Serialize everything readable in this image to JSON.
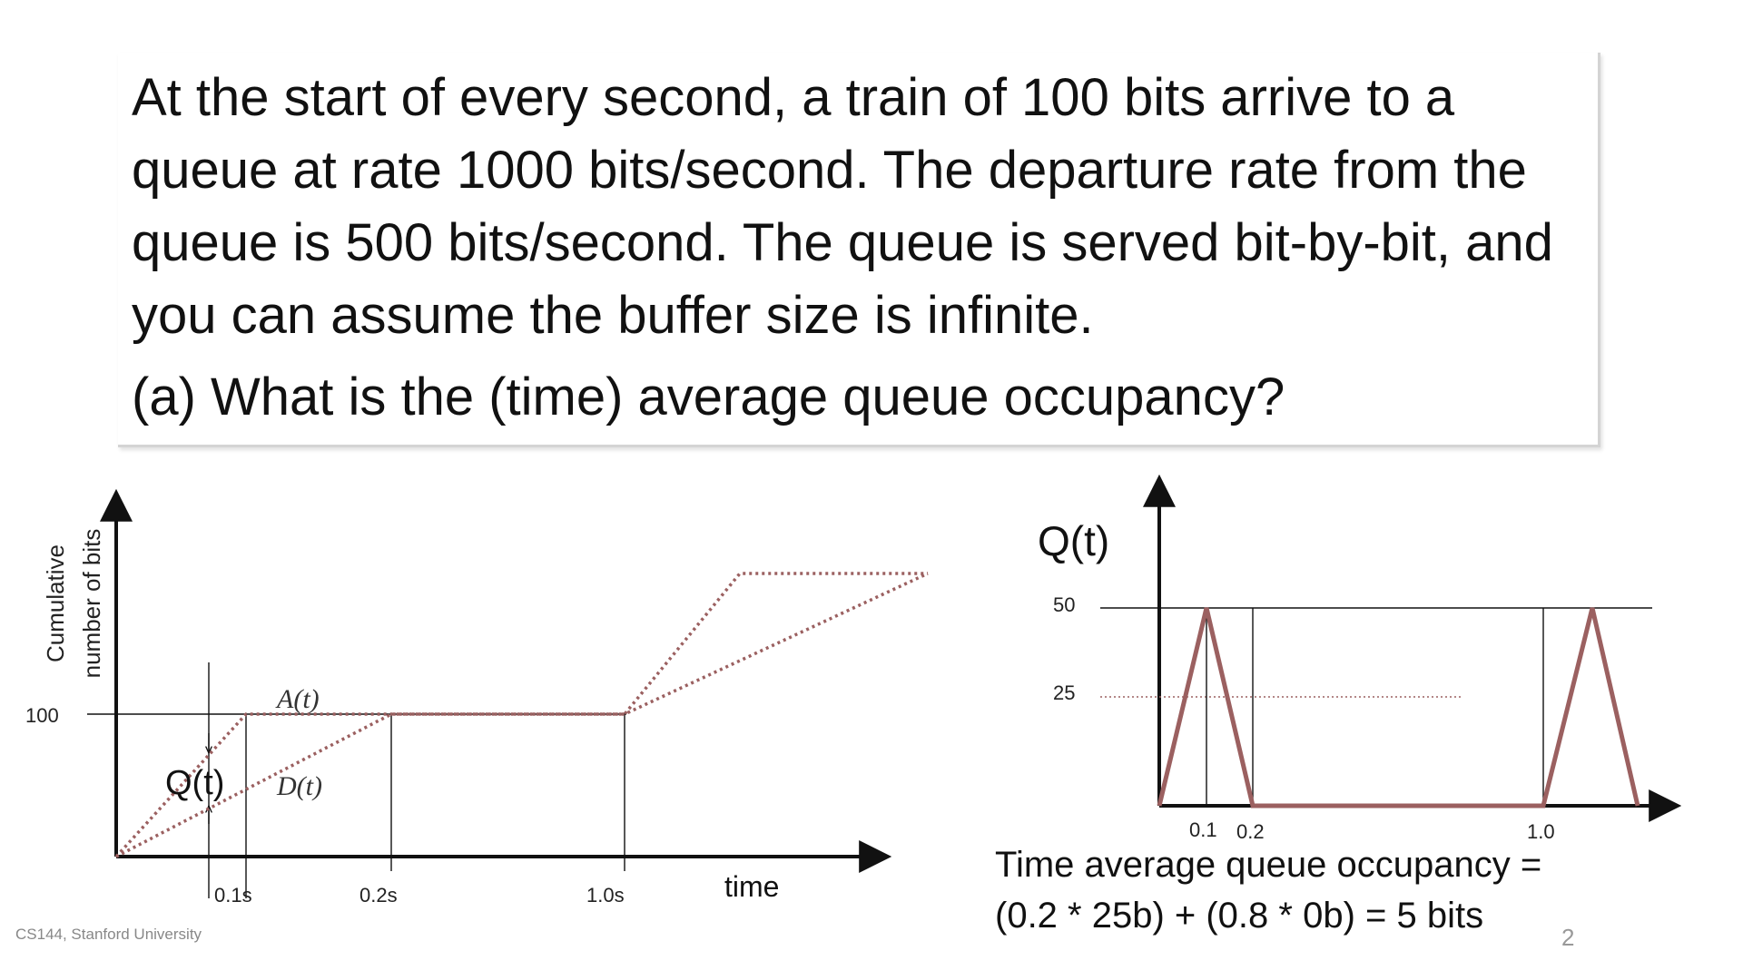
{
  "slide": {
    "question_text": "At the start of every second, a train of 100 bits arrive to a queue at rate 1000 bits/second. The departure rate from the queue is 500 bits/second. The queue is served bit-by-bit, and you can assume the buffer size is infinite.",
    "question_part": "(a) What is the (time) average queue occupancy?",
    "footer": "CS144, Stanford University",
    "page_number": "2"
  },
  "left_diagram": {
    "y_label_line1": "Cumulative",
    "y_label_line2": "number of bits",
    "y_tick": "100",
    "x_label": "time",
    "x_ticks": [
      "0.1s",
      "0.2s",
      "1.0s"
    ],
    "arrival_label": "A(t)",
    "departure_label": "D(t)",
    "queue_label": "Q(t)"
  },
  "right_diagram": {
    "title": "Q(t)",
    "y_ticks": [
      "50",
      "25"
    ],
    "x_ticks": [
      "0.1",
      "0.2",
      "1.0"
    ],
    "result_line1": "Time average queue occupancy =",
    "result_line2": "(0.2 * 25b) + (0.8 * 0b) = 5 bits"
  },
  "colors": {
    "curve": "#9b6060",
    "axis": "#111111",
    "box_border": "#d4d4d4"
  }
}
